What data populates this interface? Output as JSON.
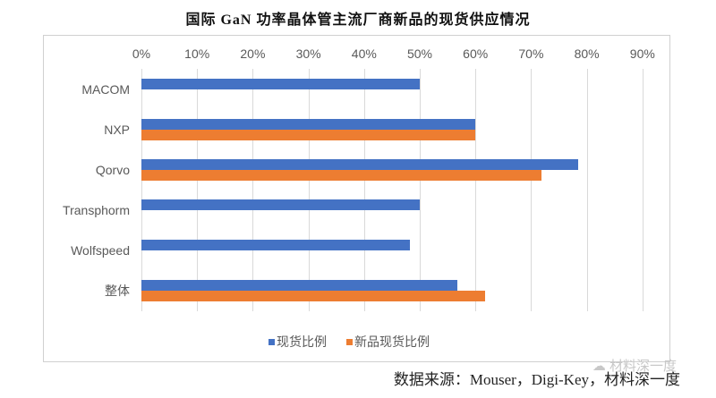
{
  "chart_data": {
    "type": "bar",
    "orientation": "horizontal",
    "title": "国际 GaN 功率晶体管主流厂商新品的现货供应情况",
    "xlabel": "",
    "ylabel": "",
    "xlim": [
      0,
      90
    ],
    "x_ticks": [
      "0%",
      "10%",
      "20%",
      "30%",
      "40%",
      "50%",
      "60%",
      "70%",
      "80%",
      "90%"
    ],
    "grid": true,
    "legend_position": "bottom",
    "categories": [
      "MACOM",
      "NXP",
      "Qorvo",
      "Transphorm",
      "Wolfspeed",
      "整体"
    ],
    "series": [
      {
        "name": "现货比例",
        "color": "#4472C4",
        "values": [
          50,
          60,
          78.5,
          50,
          48.3,
          56.8
        ]
      },
      {
        "name": "新品现货比例",
        "color": "#ED7D31",
        "values": [
          null,
          60,
          71.8,
          null,
          null,
          61.7
        ]
      }
    ]
  },
  "source_note": "数据来源：Mouser，Digi-Key，材料深一度",
  "watermark": "材料深一度"
}
